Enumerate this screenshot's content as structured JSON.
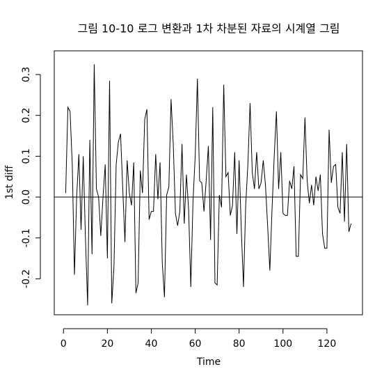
{
  "chart_data": {
    "type": "line",
    "title": "그림 10-10 로그 변환과 1차 차분된 자료의 시계열 그림",
    "xlabel": "Time",
    "ylabel": "1st diff",
    "x": [
      1,
      2,
      3,
      4,
      5,
      6,
      7,
      8,
      9,
      10,
      11,
      12,
      13,
      14,
      15,
      16,
      17,
      18,
      19,
      20,
      21,
      22,
      23,
      24,
      25,
      26,
      27,
      28,
      29,
      30,
      31,
      32,
      33,
      34,
      35,
      36,
      37,
      38,
      39,
      40,
      41,
      42,
      43,
      44,
      45,
      46,
      47,
      48,
      49,
      50,
      51,
      52,
      53,
      54,
      55,
      56,
      57,
      58,
      59,
      60,
      61,
      62,
      63,
      64,
      65,
      66,
      67,
      68,
      69,
      70,
      71,
      72,
      73,
      74,
      75,
      76,
      77,
      78,
      79,
      80,
      81,
      82,
      83,
      84,
      85,
      86,
      87,
      88,
      89,
      90,
      91,
      92,
      93,
      94,
      95,
      96,
      97,
      98,
      99,
      100,
      101,
      102,
      103,
      104,
      105,
      106,
      107,
      108,
      109,
      110,
      111,
      112,
      113,
      114,
      115,
      116,
      117,
      118,
      119,
      120,
      121,
      122,
      123,
      124,
      125,
      126,
      127,
      128,
      129,
      130,
      131
    ],
    "values": [
      0.01,
      0.22,
      0.21,
      0.08,
      -0.19,
      0.0,
      0.105,
      -0.08,
      0.1,
      -0.1,
      -0.265,
      0.14,
      -0.14,
      0.325,
      0.02,
      0.0,
      -0.095,
      0.0,
      0.08,
      -0.15,
      0.285,
      -0.26,
      -0.17,
      0.08,
      0.135,
      0.155,
      0.02,
      -0.11,
      0.09,
      0.01,
      -0.02,
      0.085,
      -0.235,
      -0.21,
      0.065,
      0.01,
      0.19,
      0.215,
      -0.055,
      -0.035,
      -0.035,
      0.105,
      -0.005,
      0.085,
      -0.16,
      -0.245,
      0.005,
      0.025,
      0.24,
      0.13,
      -0.04,
      -0.07,
      -0.035,
      0.13,
      -0.065,
      0.055,
      -0.03,
      -0.22,
      -0.01,
      0.1,
      0.29,
      0.04,
      0.035,
      -0.035,
      0.04,
      0.125,
      -0.105,
      0.22,
      -0.21,
      -0.215,
      0.005,
      -0.025,
      0.275,
      0.05,
      0.06,
      -0.045,
      -0.02,
      0.11,
      -0.09,
      0.09,
      -0.08,
      -0.22,
      -0.02,
      0.08,
      0.23,
      0.06,
      0.02,
      0.11,
      0.02,
      0.035,
      0.09,
      0.03,
      -0.07,
      -0.18,
      -0.03,
      0.1,
      0.21,
      0.02,
      0.11,
      -0.04,
      -0.045,
      -0.045,
      0.04,
      0.02,
      0.075,
      -0.145,
      -0.145,
      0.055,
      0.045,
      0.195,
      0.04,
      -0.015,
      0.03,
      -0.02,
      0.05,
      0.015,
      0.055,
      -0.09,
      -0.125,
      -0.125,
      0.165,
      0.035,
      0.075,
      0.08,
      -0.025,
      -0.04,
      0.11,
      -0.06,
      0.13,
      -0.085,
      -0.065
    ],
    "color": "#000000",
    "hlines": [
      0
    ],
    "xlim": [
      -4.2,
      136.2
    ],
    "xticks": [
      0,
      20,
      40,
      60,
      80,
      100,
      120
    ],
    "ylim": [
      -0.288,
      0.358
    ],
    "yticks": [
      -0.2,
      -0.1,
      {
        "value": 0,
        "label": "0.0"
      },
      0.1,
      0.2,
      0.3
    ]
  }
}
